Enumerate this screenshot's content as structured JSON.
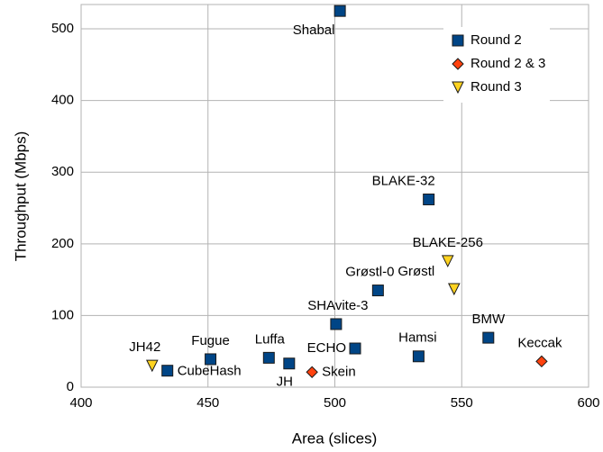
{
  "chart_data": {
    "type": "scatter",
    "x_label": "Area (slices)",
    "y_label": "Throughput (Mbps)",
    "xlim": [
      400,
      600
    ],
    "xticks": [
      400,
      450,
      500,
      550,
      600
    ],
    "ylim": [
      0,
      534
    ],
    "yticks": [
      0,
      100,
      200,
      300,
      400,
      500
    ],
    "grid": true,
    "legend": "upper right",
    "series": [
      {
        "name": "Round 2",
        "color": "#004586",
        "marker": "square",
        "labels": [
          "Shabal",
          "BLAKE-32",
          "Grøstl-0",
          "SHAvite-3",
          "ECHO",
          "Hamsi",
          "BMW",
          "Luffa",
          "JH",
          "Fugue",
          "CubeHash"
        ],
        "x": [
          502,
          537,
          517,
          500.5,
          508,
          533,
          560.5,
          474,
          482,
          451,
          434
        ],
        "values": [
          525,
          262,
          135,
          88,
          54,
          43,
          69,
          41,
          33,
          39,
          23
        ]
      },
      {
        "name": "Round 2 & 3",
        "color": "#ff420e",
        "marker": "diamond",
        "labels": [
          "Skein",
          "Keccak"
        ],
        "x": [
          491,
          581.5
        ],
        "values": [
          21,
          36
        ]
      },
      {
        "name": "Round 3",
        "color": "#ffd320",
        "marker": "triangle",
        "labels": [
          "JH42",
          "Grøstl",
          "BLAKE-256"
        ],
        "x": [
          428,
          547,
          544.5
        ],
        "values": [
          30,
          137,
          176
        ]
      }
    ]
  }
}
